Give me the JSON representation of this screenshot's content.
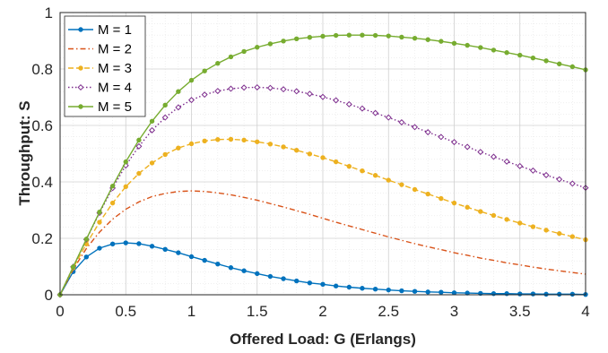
{
  "chart_data": {
    "type": "line",
    "xlabel": "Offered Load: G (Erlangs)",
    "ylabel": "Throughput: S",
    "xlim": [
      0,
      4
    ],
    "ylim": [
      0,
      1
    ],
    "xticks": [
      "0",
      "0.5",
      "1",
      "1.5",
      "2",
      "2.5",
      "3",
      "3.5",
      "4"
    ],
    "yticks": [
      "0",
      "0.2",
      "0.4",
      "0.6",
      "0.8",
      "1"
    ],
    "grid": true,
    "minor_grid": true,
    "legend_position": "top-left",
    "x": [
      0,
      0.1,
      0.2,
      0.3,
      0.4,
      0.5,
      0.6,
      0.7,
      0.8,
      0.9,
      1.0,
      1.1,
      1.2,
      1.3,
      1.4,
      1.5,
      1.6,
      1.7,
      1.8,
      1.9,
      2.0,
      2.1,
      2.2,
      2.3,
      2.4,
      2.5,
      2.6,
      2.7,
      2.8,
      2.9,
      3.0,
      3.1,
      3.2,
      3.3,
      3.4,
      3.5,
      3.6,
      3.7,
      3.8,
      3.9,
      4.0
    ],
    "series": [
      {
        "name": "M = 1",
        "color": "#0072BD",
        "dash": "solid",
        "marker": "dot",
        "values": [
          0,
          0.082,
          0.134,
          0.165,
          0.18,
          0.184,
          0.181,
          0.172,
          0.161,
          0.149,
          0.135,
          0.122,
          0.109,
          0.096,
          0.085,
          0.075,
          0.065,
          0.057,
          0.049,
          0.042,
          0.037,
          0.031,
          0.027,
          0.023,
          0.02,
          0.017,
          0.014,
          0.012,
          0.01,
          0.009,
          0.007,
          0.006,
          0.005,
          0.004,
          0.004,
          0.003,
          0.003,
          0.002,
          0.002,
          0.002,
          0.001
        ]
      },
      {
        "name": "M = 2",
        "color": "#D95319",
        "dash": "dashdot",
        "marker": "none",
        "values": [
          0,
          0.09,
          0.164,
          0.222,
          0.268,
          0.303,
          0.329,
          0.348,
          0.359,
          0.366,
          0.368,
          0.366,
          0.361,
          0.354,
          0.345,
          0.335,
          0.323,
          0.311,
          0.298,
          0.285,
          0.271,
          0.257,
          0.244,
          0.231,
          0.218,
          0.205,
          0.193,
          0.181,
          0.17,
          0.16,
          0.149,
          0.14,
          0.13,
          0.122,
          0.113,
          0.106,
          0.098,
          0.091,
          0.085,
          0.079,
          0.073
        ]
      },
      {
        "name": "M = 3",
        "color": "#EDB120",
        "dash": "dashed",
        "marker": "dot",
        "values": [
          0,
          0.095,
          0.18,
          0.257,
          0.325,
          0.383,
          0.43,
          0.467,
          0.497,
          0.52,
          0.535,
          0.545,
          0.55,
          0.551,
          0.548,
          0.542,
          0.534,
          0.524,
          0.512,
          0.499,
          0.486,
          0.471,
          0.455,
          0.439,
          0.423,
          0.406,
          0.39,
          0.373,
          0.357,
          0.341,
          0.325,
          0.31,
          0.295,
          0.281,
          0.267,
          0.254,
          0.241,
          0.229,
          0.217,
          0.206,
          0.195
        ]
      },
      {
        "name": "M = 4",
        "color": "#7E2F8E",
        "dash": "dotted",
        "marker": "diamond",
        "values": [
          0,
          0.099,
          0.196,
          0.29,
          0.378,
          0.458,
          0.526,
          0.583,
          0.628,
          0.664,
          0.69,
          0.709,
          0.722,
          0.73,
          0.734,
          0.735,
          0.733,
          0.728,
          0.721,
          0.712,
          0.701,
          0.689,
          0.675,
          0.66,
          0.644,
          0.628,
          0.611,
          0.594,
          0.576,
          0.559,
          0.541,
          0.524,
          0.506,
          0.489,
          0.472,
          0.456,
          0.44,
          0.424,
          0.409,
          0.394,
          0.379
        ]
      },
      {
        "name": "M = 5",
        "color": "#77AC30",
        "dash": "solid",
        "marker": "dot",
        "values": [
          0,
          0.099,
          0.197,
          0.293,
          0.385,
          0.471,
          0.548,
          0.615,
          0.672,
          0.72,
          0.76,
          0.793,
          0.82,
          0.843,
          0.862,
          0.877,
          0.889,
          0.899,
          0.907,
          0.912,
          0.916,
          0.919,
          0.92,
          0.92,
          0.919,
          0.917,
          0.913,
          0.909,
          0.904,
          0.898,
          0.891,
          0.884,
          0.876,
          0.867,
          0.858,
          0.849,
          0.839,
          0.829,
          0.818,
          0.808,
          0.797
        ]
      }
    ]
  }
}
